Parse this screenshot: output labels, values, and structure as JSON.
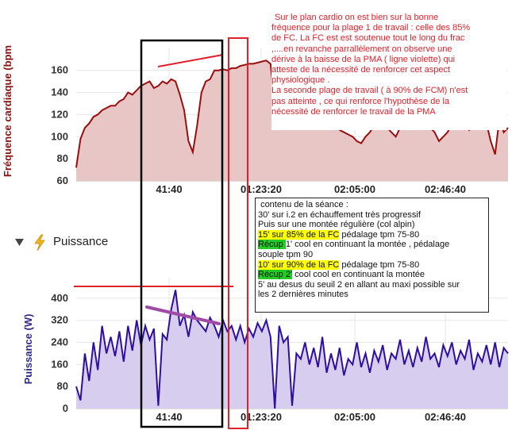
{
  "colors": {
    "hr_line": "#9b0d0d",
    "hr_fill": "#e8c6c6",
    "hr_axis_label": "#8b1010",
    "power_line": "#2e0fa0",
    "power_fill": "#d6cdef",
    "power_axis_label": "#2e2a8a",
    "annotation_red": "#e0202a",
    "annotation_purple": "#a04aa8",
    "highlight_yellow": "#ffff00",
    "highlight_green": "#22cc22"
  },
  "section": {
    "toggle_icon": "triangle-down-icon",
    "lightning_icon": "lightning-icon",
    "title": "Puissance"
  },
  "note_top": [
    "Sur le plan cardio on est bien sur la bonne",
    "fréquence pour la plage 1 de travail : celle des 85%",
    "de FC. La FC est  est soutenue tout le long du frac",
    ",....en revanche  parrallèlement on observe une",
    "dérive à la baisse de la PMA  ( ligne violette) qui",
    "atteste de la nécessité de renforcer cet aspect",
    "physiologique .",
    "La seconde plage de travail ( à 90% de FCM)  n'est",
    "pas atteinte , ce qui renforce l'hypothèse de la",
    "nécessité de renforcer  le travail de la PMA"
  ],
  "content_box": {
    "l1": "contenu de la séance :",
    "l2": "30' sur i.2 en échauffement très progressif",
    "l3": "Puis sur une montée régulière (col alpin)",
    "l4_hl": "15'  sur 85% de la FC",
    "l4_rest": "  pédalage tpm 75-80",
    "l5_hl": "Récup ",
    "l5_rest": "1'  cool en continuant la montée , pédalage",
    "l6": "souple tpm 90",
    "l7_hl": "10' sur 90% de la FC",
    "l7_rest": "  pédalage tpm 75-80",
    "l8_hl": "Récup 2'",
    "l8_rest": "  cool cool en continuant la montée",
    "l9": "5'  au desus du seuil 2 en allant au maxi possible sur",
    "l10": "les 2 dernières minutes"
  },
  "chart_data": [
    {
      "type": "area",
      "ylabel": "Fréquence cardiaque (bpm",
      "ylim": [
        60,
        172
      ],
      "yticks": [
        60,
        80,
        100,
        120,
        140,
        160
      ],
      "xticks": [
        "41:40",
        "01:23:20",
        "02:05:00",
        "02:46:40"
      ],
      "x_minutes": [
        0,
        2,
        4,
        6,
        8,
        10,
        12,
        14,
        16,
        18,
        20,
        22,
        24,
        26,
        28,
        30,
        32,
        34,
        36,
        38,
        40,
        42,
        44,
        46,
        48,
        50,
        52,
        54,
        56,
        58,
        60,
        62,
        64,
        66,
        68,
        70,
        72,
        74,
        76,
        78,
        80,
        82,
        84,
        86,
        88,
        90,
        92,
        94,
        96,
        98,
        100,
        102,
        104,
        106,
        108,
        110,
        112,
        114,
        116,
        118,
        120,
        122,
        124,
        126,
        128,
        130,
        132,
        134,
        136,
        138,
        140,
        142,
        144,
        146,
        148,
        150,
        152,
        154,
        156,
        158,
        160,
        162,
        164,
        166,
        168,
        170,
        172,
        174,
        176,
        178,
        180,
        182,
        184,
        186,
        188,
        190,
        192,
        194,
        196,
        198,
        200
      ],
      "values": [
        72,
        98,
        108,
        112,
        118,
        120,
        124,
        126,
        128,
        128,
        132,
        134,
        140,
        138,
        142,
        146,
        148,
        150,
        144,
        146,
        150,
        148,
        152,
        150,
        138,
        124,
        96,
        86,
        110,
        140,
        150,
        152,
        160,
        160,
        161,
        160,
        162,
        162,
        164,
        165,
        166,
        166,
        167,
        168,
        169,
        166,
        130,
        168,
        170,
        160,
        148,
        142,
        141,
        142,
        141,
        142,
        140,
        136,
        130,
        125,
        116,
        106,
        104,
        102,
        100,
        96,
        94,
        100,
        104,
        110,
        118,
        112,
        108,
        104,
        100,
        108,
        112,
        114,
        112,
        110,
        116,
        114,
        108,
        104,
        96,
        100,
        104,
        112,
        126,
        122,
        132,
        106,
        108,
        116,
        124,
        112,
        96,
        84,
        116,
        104,
        108
      ],
      "grid": true
    },
    {
      "type": "area",
      "ylabel": "Puissance (W)",
      "ylim": [
        0,
        440
      ],
      "yticks": [
        0,
        80,
        160,
        240,
        320,
        400
      ],
      "xticks": [
        "41:40",
        "01:23:20",
        "02:05:00",
        "02:46:40"
      ],
      "x_minutes": [
        0,
        2,
        4,
        6,
        8,
        10,
        12,
        14,
        16,
        18,
        20,
        22,
        24,
        26,
        28,
        30,
        32,
        34,
        36,
        38,
        40,
        42,
        44,
        46,
        48,
        50,
        52,
        54,
        56,
        58,
        60,
        62,
        64,
        66,
        68,
        70,
        72,
        74,
        76,
        78,
        80,
        82,
        84,
        86,
        88,
        90,
        92,
        94,
        96,
        98,
        100,
        102,
        104,
        106,
        108,
        110,
        112,
        114,
        116,
        118,
        120,
        122,
        124,
        126,
        128,
        130,
        132,
        134,
        136,
        138,
        140,
        142,
        144,
        146,
        148,
        150,
        152,
        154,
        156,
        158,
        160,
        162,
        164,
        166,
        168,
        170,
        172,
        174,
        176,
        178,
        180,
        182,
        184,
        186,
        188,
        190,
        192,
        194,
        196,
        198,
        200
      ],
      "values": [
        80,
        30,
        200,
        100,
        240,
        140,
        300,
        200,
        260,
        190,
        280,
        170,
        300,
        210,
        320,
        230,
        300,
        250,
        290,
        10,
        270,
        250,
        360,
        430,
        300,
        340,
        260,
        350,
        320,
        300,
        280,
        330,
        300,
        260,
        320,
        280,
        300,
        250,
        300,
        240,
        290,
        260,
        310,
        280,
        320,
        260,
        0,
        300,
        240,
        260,
        10,
        200,
        180,
        240,
        160,
        220,
        150,
        260,
        130,
        200,
        140,
        220,
        120,
        180,
        160,
        240,
        150,
        200,
        130,
        210,
        170,
        230,
        140,
        200,
        180,
        250,
        160,
        210,
        150,
        220,
        170,
        260,
        180,
        200,
        150,
        230,
        190,
        240,
        160,
        210,
        180,
        250,
        140,
        200,
        170,
        230,
        160,
        240,
        150,
        220,
        200
      ],
      "grid": true
    }
  ]
}
